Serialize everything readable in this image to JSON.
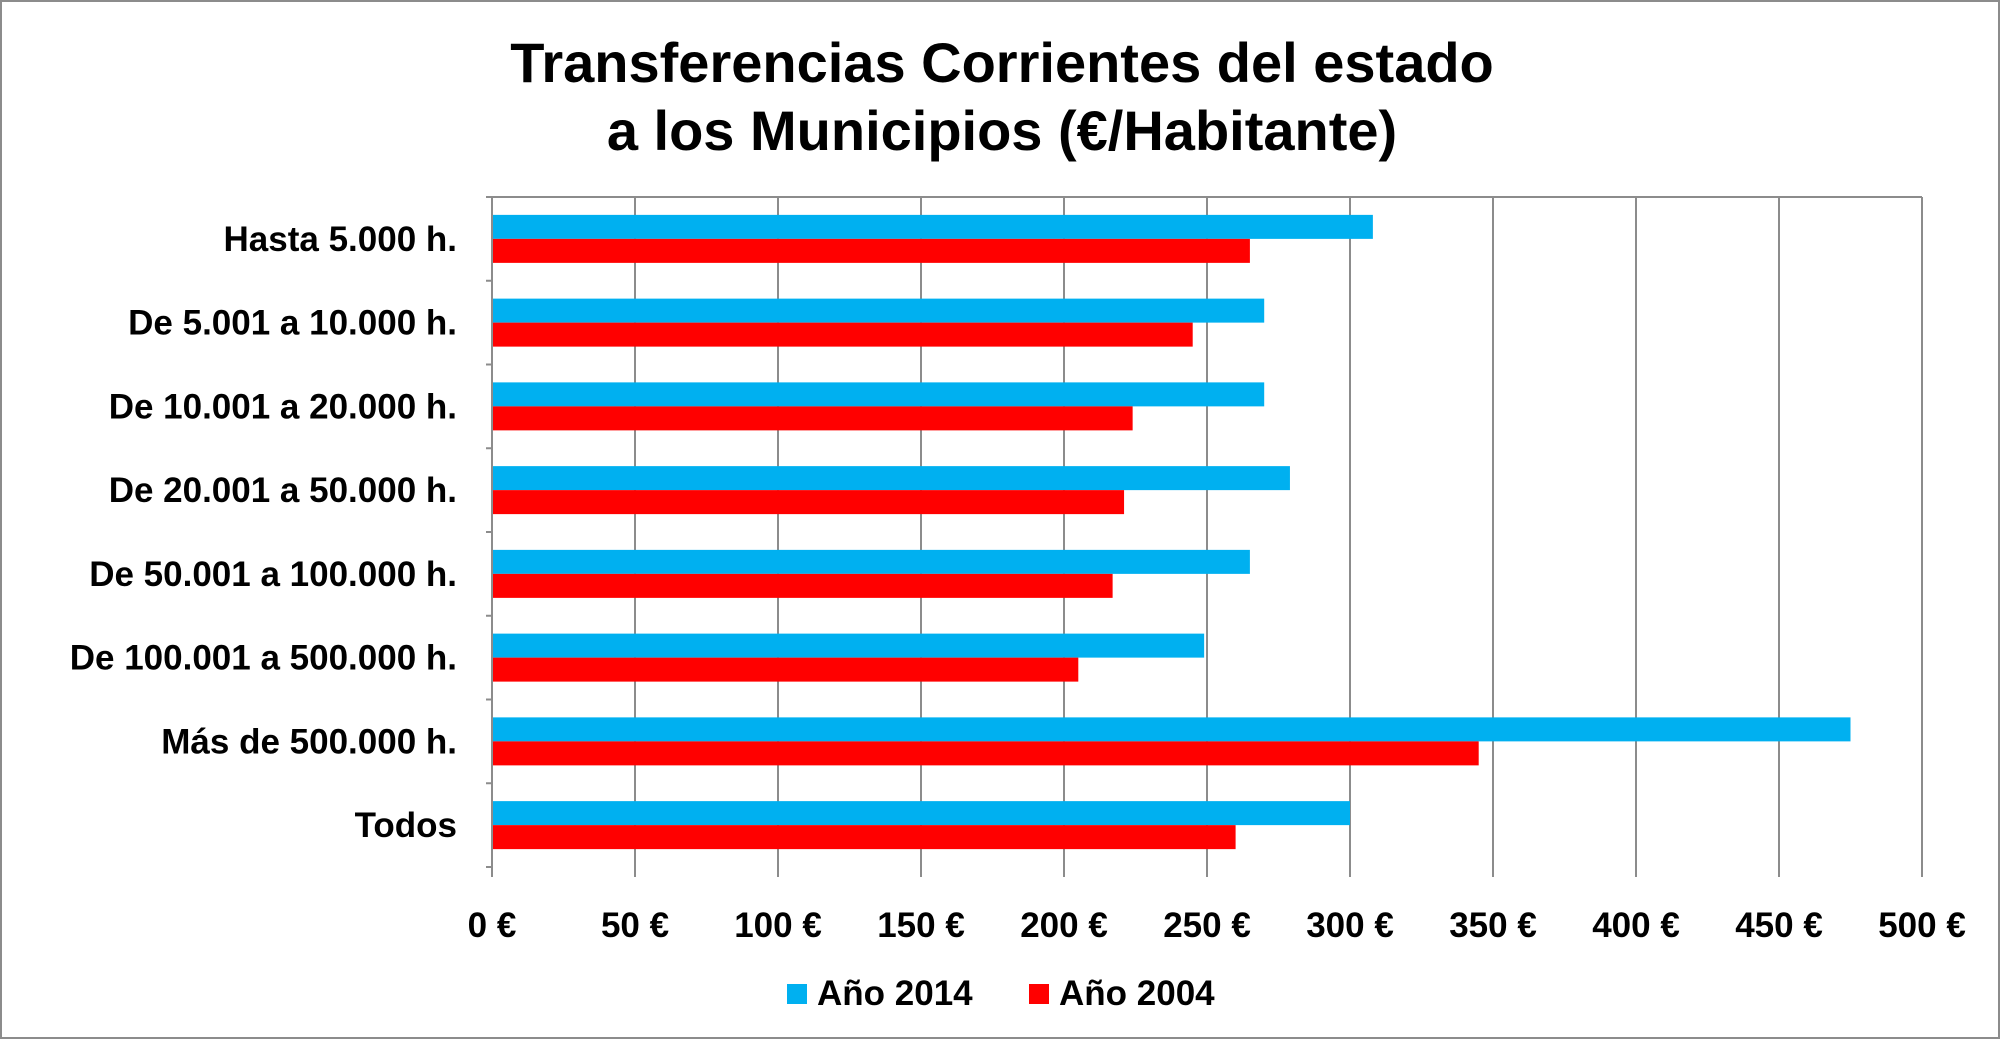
{
  "chart_data": {
    "type": "bar",
    "orientation": "horizontal",
    "title_lines": [
      "Transferencias Corrientes del estado",
      "a los Municipios (€/Habitante)"
    ],
    "categories": [
      "Hasta 5.000 h.",
      "De 5.001 a 10.000 h.",
      "De 10.001 a 20.000 h.",
      "De 20.001 a 50.000 h.",
      "De 50.001 a 100.000 h.",
      "De 100.001 a 500.000 h.",
      "Más de 500.000 h.",
      "Todos"
    ],
    "series": [
      {
        "name": "Año 2014",
        "color": "#00b0f0",
        "values": [
          308,
          270,
          270,
          279,
          265,
          249,
          475,
          300
        ]
      },
      {
        "name": "Año 2004",
        "color": "#ff0000",
        "values": [
          265,
          245,
          224,
          221,
          217,
          205,
          345,
          260
        ]
      }
    ],
    "xlim": [
      0,
      500
    ],
    "x_ticks": [
      0,
      50,
      100,
      150,
      200,
      250,
      300,
      350,
      400,
      450,
      500
    ],
    "x_tick_labels": [
      "0 €",
      "50 €",
      "100 €",
      "150 €",
      "200 €",
      "250 €",
      "300 €",
      "350 €",
      "400 €",
      "450 €",
      "500 €"
    ],
    "grid": true,
    "legend_position": "bottom"
  }
}
